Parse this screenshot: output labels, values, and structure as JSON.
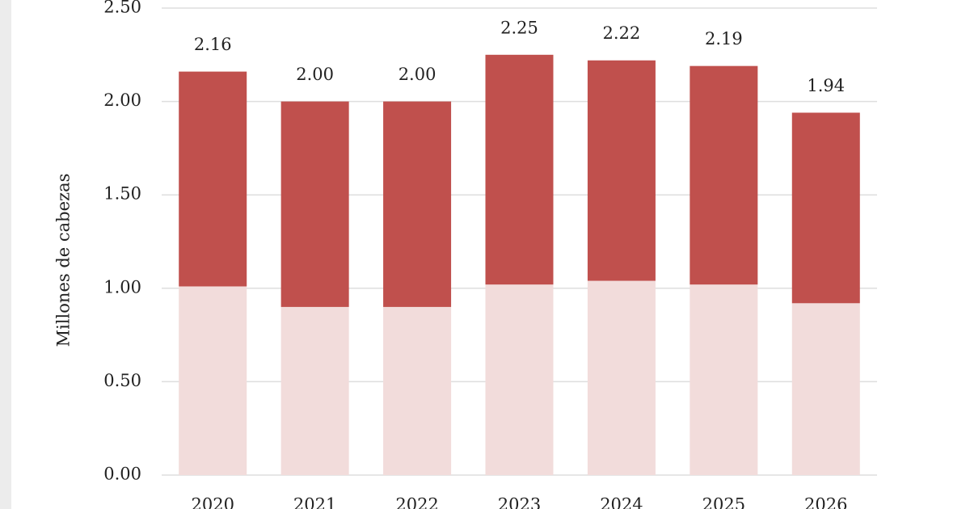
{
  "chart_data": {
    "type": "stacked_bar",
    "y_axis_label": "Millones de cabezas",
    "categories": [
      "2020",
      "2021",
      "2022",
      "2023",
      "2024",
      "2025",
      "2026"
    ],
    "series": [
      {
        "color": "#f2dcdb",
        "values": [
          1.01,
          0.9,
          0.9,
          1.02,
          1.04,
          1.02,
          0.92
        ]
      },
      {
        "color": "#c0504d",
        "values": [
          1.15,
          1.1,
          1.1,
          1.23,
          1.18,
          1.17,
          1.02
        ]
      }
    ],
    "totals": [
      2.16,
      2.0,
      2.0,
      2.25,
      2.22,
      2.19,
      1.94
    ],
    "total_labels": [
      "2.16",
      "2.00",
      "2.00",
      "2.25",
      "2.22",
      "2.19",
      "1.94"
    ],
    "ylim": [
      0,
      2.5
    ],
    "yticks": [
      {
        "value": 0,
        "label": "0.00"
      },
      {
        "value": 0.5,
        "label": "0.50"
      },
      {
        "value": 1,
        "label": "1.00"
      },
      {
        "value": 1.5,
        "label": "1.50"
      },
      {
        "value": 2,
        "label": "2.00"
      },
      {
        "value": 2.5,
        "label": "2.50"
      }
    ],
    "grid": true
  }
}
